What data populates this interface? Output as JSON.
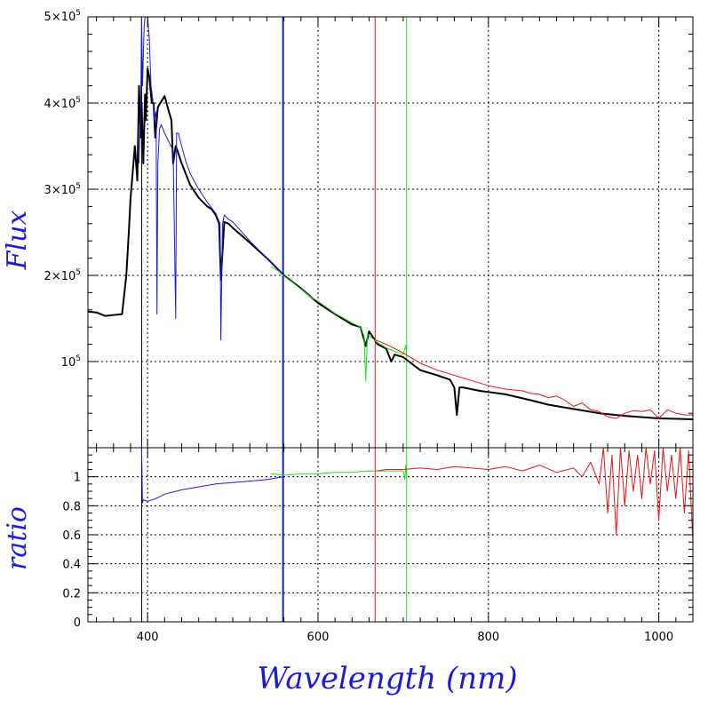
{
  "chart_data": [
    {
      "type": "line",
      "panel": "top",
      "ylabel": "Flux",
      "xlabel": "",
      "xlim": [
        330,
        1040
      ],
      "ylim": [
        0,
        500000
      ],
      "grid": true,
      "x_ticks": [
        400,
        600,
        800,
        1000
      ],
      "y_ticks": [
        {
          "value": 100000,
          "label": "10",
          "exp": "5"
        },
        {
          "value": 200000,
          "label": "2×10",
          "exp": "5"
        },
        {
          "value": 300000,
          "label": "3×10",
          "exp": "5"
        },
        {
          "value": 400000,
          "label": "4×10",
          "exp": "5"
        },
        {
          "value": 500000,
          "label": "5×10",
          "exp": "5"
        }
      ],
      "colors": {
        "black": "#000000",
        "blue": "#1a1adc",
        "green": "#22dd22",
        "red": "#ee1111"
      },
      "vlines": [
        {
          "x": 393,
          "color": "#000000"
        },
        {
          "x": 559,
          "color": "#1a1adc"
        },
        {
          "x": 667,
          "color": "#ee1111"
        },
        {
          "x": 704,
          "color": "#22dd22"
        }
      ],
      "series": [
        {
          "color": "#000000",
          "width": 2,
          "x": [
            330,
            340,
            350,
            360,
            370,
            375,
            378,
            380,
            385,
            388,
            390,
            392,
            393,
            395,
            397,
            398,
            400,
            402,
            405,
            407,
            409,
            412,
            415,
            420,
            425,
            428,
            430,
            433,
            435,
            440,
            450,
            460,
            470,
            475,
            480,
            484,
            486,
            490,
            495,
            500,
            520,
            540,
            560,
            580,
            600,
            620,
            640,
            650,
            656,
            660,
            670,
            680,
            686,
            690,
            700,
            720,
            740,
            755,
            760,
            763,
            766,
            770,
            790,
            820,
            850,
            870,
            900,
            930,
            960,
            1000,
            1040
          ],
          "y": [
            158000,
            157000,
            153000,
            154000,
            155000,
            200000,
            250000,
            290000,
            350000,
            310000,
            420000,
            360000,
            400000,
            330000,
            410000,
            380000,
            440000,
            430000,
            400000,
            400000,
            360000,
            395000,
            400000,
            408000,
            390000,
            380000,
            330000,
            350000,
            345000,
            330000,
            305000,
            290000,
            280000,
            277000,
            270000,
            260000,
            195000,
            262000,
            260000,
            255000,
            238000,
            220000,
            200000,
            185000,
            168000,
            155000,
            143000,
            140000,
            118000,
            135000,
            120000,
            115000,
            100000,
            108000,
            105000,
            90000,
            84000,
            79000,
            70000,
            38000,
            70000,
            70000,
            66000,
            62000,
            55000,
            50000,
            45000,
            40000,
            37000,
            34000,
            33000
          ]
        },
        {
          "color": "#1a1adc",
          "width": 1,
          "x": [
            390,
            392,
            393,
            394,
            396,
            398,
            400,
            402,
            404,
            406,
            408,
            410,
            411,
            412,
            414,
            416,
            418,
            420,
            425,
            430,
            433,
            434,
            436,
            440,
            445,
            450,
            460,
            470,
            480,
            485,
            486,
            488,
            490,
            495,
            500,
            520,
            540,
            559
          ],
          "y": [
            330000,
            400000,
            500000,
            420000,
            490000,
            510000,
            500000,
            475000,
            420000,
            405000,
            380000,
            390000,
            155000,
            330000,
            370000,
            375000,
            370000,
            365000,
            355000,
            345000,
            150000,
            365000,
            365000,
            350000,
            332000,
            318000,
            300000,
            285000,
            272000,
            260000,
            125000,
            260000,
            270000,
            265000,
            262000,
            240000,
            220000,
            200000
          ]
        },
        {
          "color": "#22dd22",
          "width": 1,
          "x": [
            545,
            550,
            555,
            559,
            570,
            580,
            590,
            600,
            620,
            640,
            650,
            654,
            656,
            658,
            660,
            670,
            680,
            690,
            700,
            703,
            704
          ],
          "y": [
            210000,
            207000,
            204000,
            200000,
            192000,
            184000,
            176000,
            170000,
            156000,
            145000,
            140000,
            130000,
            77000,
            132000,
            130000,
            122000,
            116000,
            112000,
            108000,
            119000,
            106000
          ]
        },
        {
          "color": "#ee1111",
          "width": 1,
          "x": [
            668,
            680,
            700,
            720,
            740,
            760,
            780,
            800,
            820,
            840,
            850,
            860,
            870,
            880,
            890,
            900,
            910,
            920,
            930,
            940,
            950,
            960,
            970,
            980,
            990,
            1000,
            1010,
            1020,
            1030,
            1040
          ],
          "y": [
            125000,
            120000,
            110000,
            98000,
            90000,
            84000,
            78000,
            72000,
            68000,
            66000,
            63000,
            62000,
            58000,
            60000,
            55000,
            48000,
            52000,
            44000,
            42000,
            36000,
            34000,
            40000,
            43000,
            42000,
            44000,
            34000,
            44000,
            40000,
            38000,
            38000
          ]
        }
      ]
    },
    {
      "type": "line",
      "panel": "bottom",
      "ylabel": "ratio",
      "xlabel": "Wavelength (nm)",
      "xlim": [
        330,
        1040
      ],
      "ylim": [
        0,
        1.2
      ],
      "grid": true,
      "x_ticks": [
        400,
        600,
        800,
        1000
      ],
      "x_tick_labels": [
        "400",
        "600",
        "800",
        "1000"
      ],
      "y_ticks": [
        0,
        0.2,
        0.4,
        0.6,
        0.8,
        1
      ],
      "y_tick_labels": [
        "0",
        "0.2",
        "0.4",
        "0.6",
        "0.8",
        "1"
      ],
      "vlines": [
        {
          "x": 393,
          "color": "#000000"
        },
        {
          "x": 559,
          "color": "#1a1adc"
        },
        {
          "x": 667,
          "color": "#ee1111"
        },
        {
          "x": 704,
          "color": "#22dd22"
        }
      ],
      "series": [
        {
          "color": "#1a1adc",
          "width": 1,
          "x": [
            393,
            394,
            395,
            400,
            410,
            420,
            440,
            460,
            480,
            500,
            520,
            540,
            559
          ],
          "y": [
            1.2,
            0.82,
            0.84,
            0.83,
            0.85,
            0.88,
            0.91,
            0.93,
            0.95,
            0.96,
            0.97,
            0.98,
            1.0
          ]
        },
        {
          "color": "#22dd22",
          "width": 1,
          "x": [
            545,
            560,
            580,
            600,
            620,
            640,
            660,
            680,
            700,
            702,
            703,
            704
          ],
          "y": [
            1.02,
            1.01,
            1.02,
            1.02,
            1.03,
            1.03,
            1.04,
            1.04,
            1.04,
            0.98,
            1.08,
            1.0
          ]
        },
        {
          "color": "#ee1111",
          "width": 1,
          "x": [
            668,
            680,
            700,
            720,
            740,
            760,
            780,
            800,
            820,
            840,
            860,
            880,
            900,
            910,
            920,
            930,
            935,
            940,
            945,
            950,
            955,
            960,
            965,
            970,
            975,
            980,
            985,
            990,
            995,
            1000,
            1005,
            1010,
            1015,
            1020,
            1025,
            1030,
            1035,
            1040
          ],
          "y": [
            1.04,
            1.05,
            1.05,
            1.06,
            1.05,
            1.07,
            1.06,
            1.05,
            1.07,
            1.04,
            1.08,
            1.03,
            1.06,
            1.0,
            1.1,
            0.95,
            1.2,
            0.75,
            1.15,
            0.6,
            1.2,
            0.8,
            1.18,
            0.9,
            1.15,
            0.85,
            1.2,
            0.95,
            1.18,
            0.7,
            1.2,
            0.9,
            1.15,
            0.85,
            1.2,
            0.75,
            1.18,
            0.55
          ]
        }
      ]
    }
  ]
}
